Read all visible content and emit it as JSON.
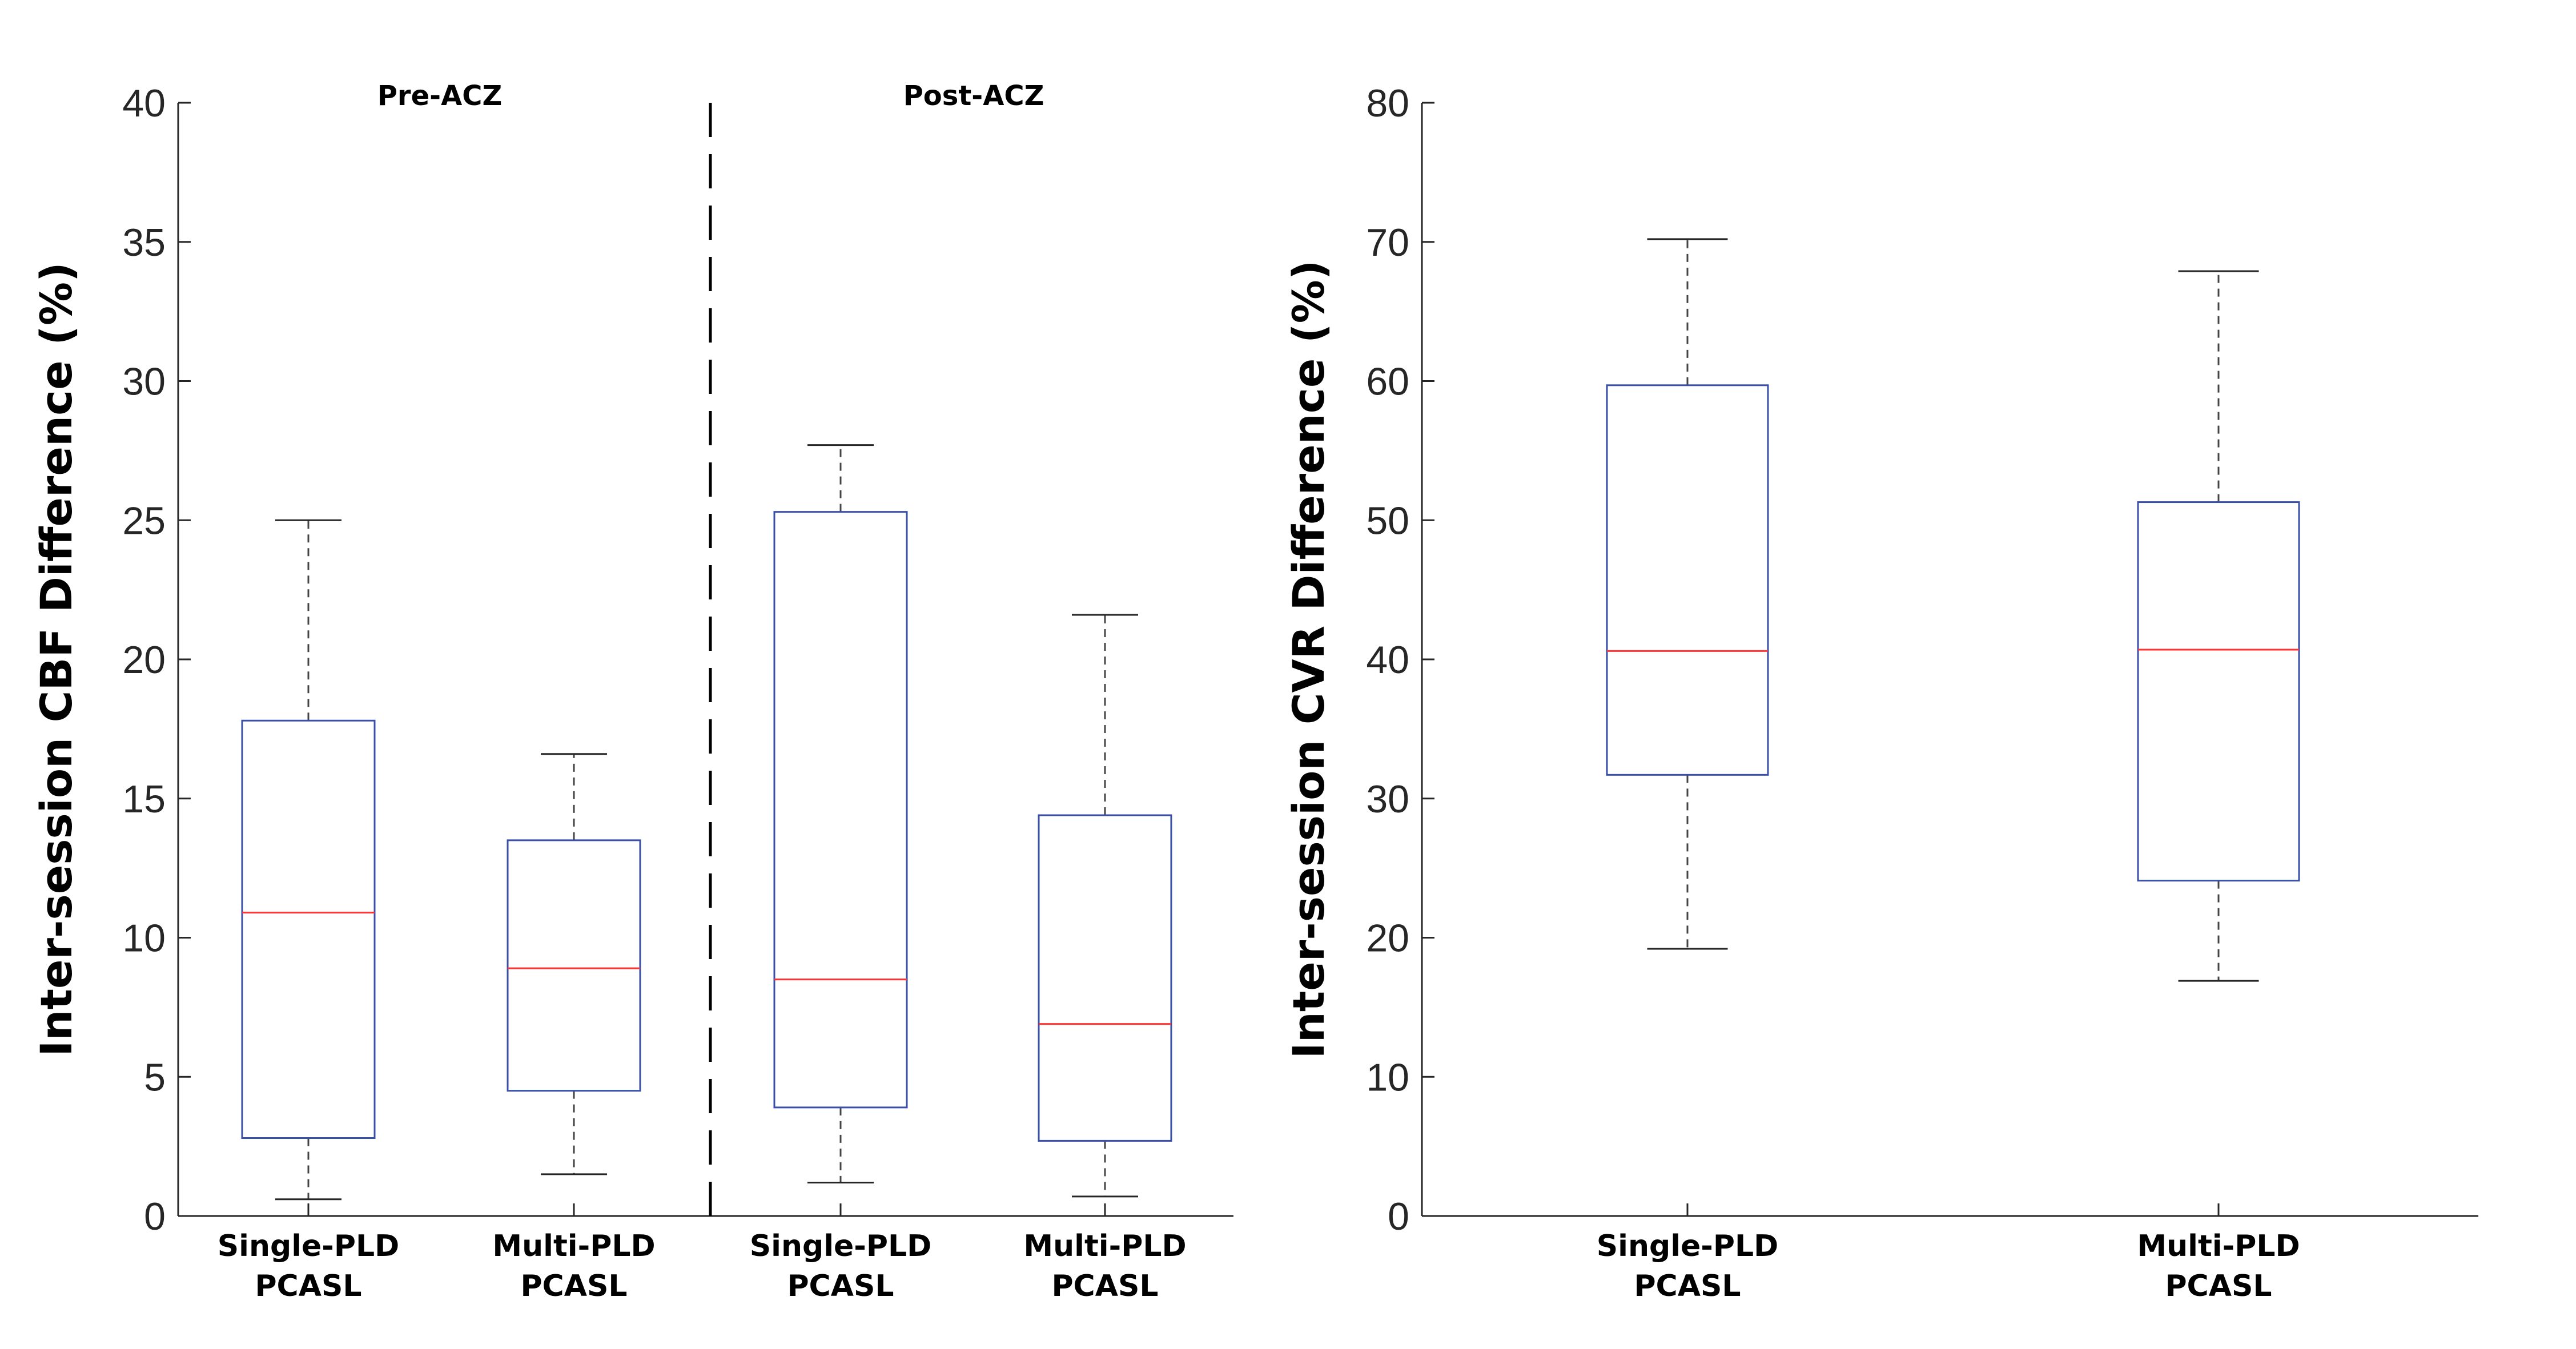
{
  "colors": {
    "box": "#3a4fa8",
    "median": "#ff3333",
    "axis": "#262626",
    "whisker": "#444444"
  },
  "chart_data": [
    {
      "type": "boxplot",
      "ylabel": "Inter-session CBF Difference (%)",
      "ylim": [
        0,
        40
      ],
      "yticks": [
        0,
        5,
        10,
        15,
        20,
        25,
        30,
        35,
        40
      ],
      "groups": [
        "Pre-ACZ",
        "Post-ACZ"
      ],
      "categories": [
        {
          "line1": "Single-PLD",
          "line2": "PCASL"
        },
        {
          "line1": "Multi-PLD",
          "line2": "PCASL"
        },
        {
          "line1": "Single-PLD",
          "line2": "PCASL"
        },
        {
          "line1": "Multi-PLD",
          "line2": "PCASL"
        }
      ],
      "boxes": [
        {
          "group": "Pre-ACZ",
          "method": "Single-PLD PCASL",
          "whisker_low": 0.6,
          "q1": 2.8,
          "median": 10.9,
          "q3": 17.8,
          "whisker_high": 25.0
        },
        {
          "group": "Pre-ACZ",
          "method": "Multi-PLD PCASL",
          "whisker_low": 1.5,
          "q1": 4.5,
          "median": 8.9,
          "q3": 13.5,
          "whisker_high": 16.6
        },
        {
          "group": "Post-ACZ",
          "method": "Single-PLD PCASL",
          "whisker_low": 1.2,
          "q1": 3.9,
          "median": 8.5,
          "q3": 25.3,
          "whisker_high": 27.7
        },
        {
          "group": "Post-ACZ",
          "method": "Multi-PLD PCASL",
          "whisker_low": 0.7,
          "q1": 2.7,
          "median": 6.9,
          "q3": 14.4,
          "whisker_high": 21.6
        }
      ]
    },
    {
      "type": "boxplot",
      "ylabel": "Inter-session CVR Difference (%)",
      "ylim": [
        0,
        80
      ],
      "yticks": [
        0,
        10,
        20,
        30,
        40,
        50,
        60,
        70,
        80
      ],
      "categories": [
        {
          "line1": "Single-PLD",
          "line2": "PCASL"
        },
        {
          "line1": "Multi-PLD",
          "line2": "PCASL"
        }
      ],
      "boxes": [
        {
          "method": "Single-PLD PCASL",
          "whisker_low": 19.2,
          "q1": 31.7,
          "median": 40.6,
          "q3": 59.7,
          "whisker_high": 70.2
        },
        {
          "method": "Multi-PLD PCASL",
          "whisker_low": 16.9,
          "q1": 24.1,
          "median": 40.7,
          "q3": 51.3,
          "whisker_high": 67.9
        }
      ]
    }
  ]
}
